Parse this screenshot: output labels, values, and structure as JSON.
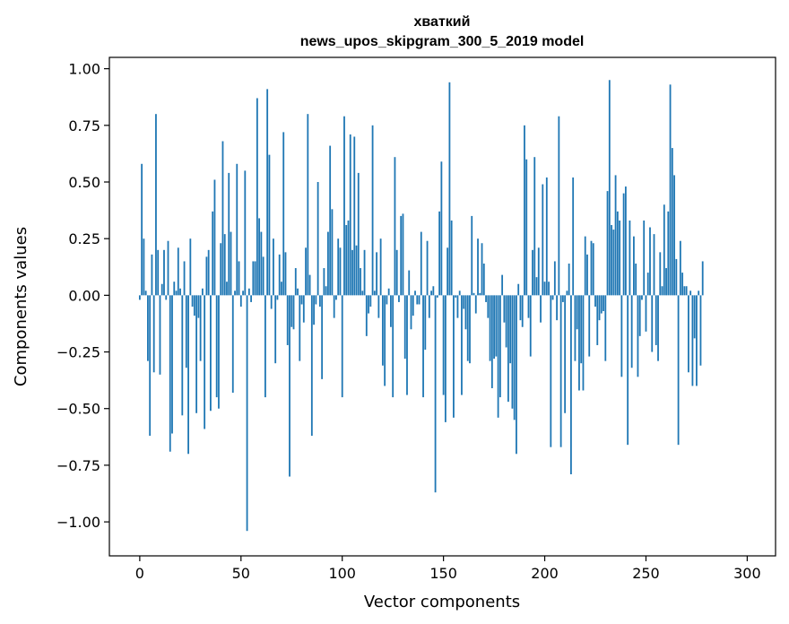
{
  "chart_data": {
    "type": "bar",
    "title_line1": "хваткий",
    "title_line2": "news_upos_skipgram_300_5_2019 model",
    "xlabel": "Vector components",
    "ylabel": "Components values",
    "xlim": [
      -15,
      314
    ],
    "ylim": [
      -1.15,
      1.05
    ],
    "xticks": [
      0,
      50,
      100,
      150,
      200,
      250,
      300
    ],
    "xtick_labels": [
      "0",
      "50",
      "100",
      "150",
      "200",
      "250",
      "300"
    ],
    "yticks": [
      -1.0,
      -0.75,
      -0.5,
      -0.25,
      0.0,
      0.25,
      0.5,
      0.75,
      1.0
    ],
    "ytick_labels": [
      "−1.00",
      "−0.75",
      "−0.50",
      "−0.25",
      "0.00",
      "0.25",
      "0.50",
      "0.75",
      "1.00"
    ],
    "bar_color": "#1f77b4",
    "values": [
      -0.02,
      0.58,
      0.25,
      0.02,
      -0.29,
      -0.62,
      0.18,
      -0.34,
      0.8,
      0.2,
      -0.35,
      0.05,
      0.2,
      -0.02,
      0.24,
      -0.69,
      -0.61,
      0.06,
      0.02,
      0.21,
      0.03,
      -0.53,
      0.15,
      -0.32,
      -0.7,
      0.25,
      -0.05,
      -0.09,
      -0.52,
      -0.1,
      -0.29,
      0.03,
      -0.59,
      0.17,
      0.2,
      -0.51,
      0.37,
      0.51,
      -0.45,
      -0.5,
      0.23,
      0.68,
      0.27,
      0.06,
      0.54,
      0.28,
      -0.43,
      0.02,
      0.58,
      0.15,
      -0.05,
      0.02,
      0.55,
      -1.04,
      0.03,
      -0.03,
      0.15,
      0.15,
      0.87,
      0.34,
      0.28,
      0.17,
      -0.45,
      0.91,
      0.62,
      -0.06,
      0.25,
      -0.3,
      -0.02,
      0.18,
      0.06,
      0.72,
      0.19,
      -0.22,
      -0.8,
      -0.14,
      -0.15,
      0.12,
      0.03,
      -0.29,
      -0.04,
      -0.12,
      0.21,
      0.8,
      0.09,
      -0.62,
      -0.13,
      -0.04,
      0.5,
      -0.05,
      -0.37,
      0.12,
      0.04,
      0.28,
      0.66,
      0.38,
      -0.1,
      -0.02,
      0.25,
      0.21,
      -0.45,
      0.79,
      0.31,
      0.33,
      0.71,
      0.2,
      0.7,
      0.22,
      0.54,
      0.12,
      0.02,
      0.2,
      -0.18,
      -0.08,
      -0.05,
      0.75,
      0.02,
      0.19,
      -0.1,
      0.25,
      -0.31,
      -0.4,
      -0.04,
      0.03,
      -0.14,
      -0.45,
      0.61,
      0.2,
      -0.03,
      0.35,
      0.36,
      -0.28,
      -0.44,
      0.11,
      -0.15,
      -0.09,
      0.02,
      -0.04,
      -0.04,
      0.28,
      -0.45,
      -0.24,
      0.24,
      -0.1,
      0.02,
      0.04,
      -0.87,
      -0.01,
      0.37,
      0.59,
      -0.44,
      -0.56,
      0.21,
      0.94,
      0.33,
      -0.54,
      -0.01,
      -0.1,
      0.02,
      -0.44,
      -0.06,
      -0.15,
      -0.29,
      -0.3,
      0.35,
      0.01,
      -0.08,
      0.25,
      0.01,
      0.23,
      0.14,
      -0.03,
      -0.1,
      -0.29,
      -0.41,
      -0.28,
      -0.27,
      -0.54,
      -0.45,
      0.09,
      -0.12,
      -0.23,
      -0.47,
      -0.3,
      -0.5,
      -0.55,
      -0.7,
      0.05,
      -0.11,
      -0.14,
      0.75,
      0.6,
      -0.1,
      -0.27,
      0.2,
      0.61,
      0.08,
      0.21,
      -0.12,
      0.49,
      0.06,
      0.52,
      0.06,
      -0.67,
      -0.02,
      0.15,
      -0.11,
      0.79,
      -0.67,
      -0.03,
      -0.52,
      0.02,
      0.14,
      -0.79,
      0.52,
      -0.29,
      -0.15,
      -0.42,
      -0.3,
      -0.42,
      0.26,
      0.18,
      -0.27,
      0.24,
      0.23,
      -0.05,
      -0.22,
      -0.11,
      -0.08,
      -0.07,
      -0.29,
      0.46,
      0.95,
      0.31,
      0.29,
      0.53,
      0.37,
      0.33,
      -0.36,
      0.45,
      0.48,
      -0.66,
      0.33,
      -0.32,
      0.26,
      0.14,
      -0.36,
      -0.18,
      -0.02,
      0.33,
      -0.16,
      0.1,
      0.3,
      -0.25,
      0.27,
      -0.22,
      -0.29,
      0.19,
      0.04,
      0.4,
      0.12,
      0.37,
      0.93,
      0.65,
      0.53,
      0.16,
      -0.66,
      0.24,
      0.1,
      0.04,
      0.04,
      -0.34,
      0.02,
      -0.4,
      -0.19,
      -0.4,
      0.02,
      -0.31,
      0.15
    ]
  }
}
